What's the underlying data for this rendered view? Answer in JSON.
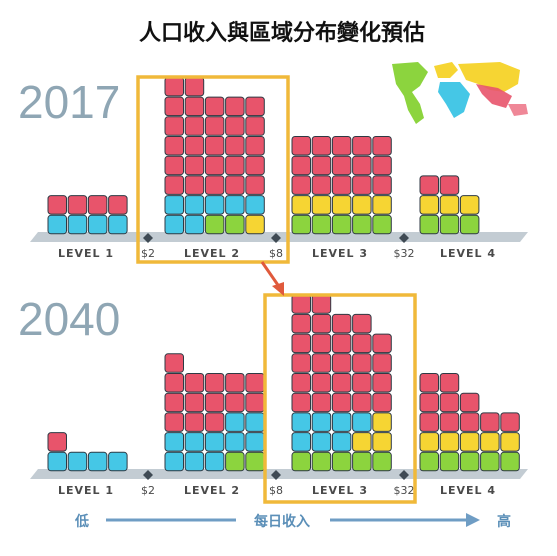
{
  "chart_data": {
    "type": "stacked-block-bar",
    "title": "人口收入與區域分布變化預估",
    "x_axis": {
      "low_label": "低",
      "label": "每日收入",
      "high_label": "高"
    },
    "levels": [
      "LEVEL 1",
      "LEVEL 2",
      "LEVEL 3",
      "LEVEL 4"
    ],
    "thresholds": [
      "$2",
      "$8",
      "$32"
    ],
    "region_colors": {
      "region_a": "#e8546b",
      "region_b": "#45c7e6",
      "region_c": "#f6d533",
      "region_d": "#8cd43e"
    },
    "panels": [
      {
        "year": "2017",
        "highlight_level": 1,
        "columns": [
          [
            {
              "r": "region_b",
              "n": 1
            },
            {
              "r": "region_a",
              "n": 1
            }
          ],
          [
            {
              "r": "region_b",
              "n": 1
            },
            {
              "r": "region_a",
              "n": 1
            }
          ],
          [
            {
              "r": "region_b",
              "n": 1
            },
            {
              "r": "region_a",
              "n": 1
            }
          ],
          [
            {
              "r": "region_b",
              "n": 1
            },
            {
              "r": "region_a",
              "n": 1
            }
          ],
          [
            {
              "r": "region_b",
              "n": 2
            },
            {
              "r": "region_a",
              "n": 6
            }
          ],
          [
            {
              "r": "region_b",
              "n": 2
            },
            {
              "r": "region_a",
              "n": 6
            }
          ],
          [
            {
              "r": "region_d",
              "n": 1
            },
            {
              "r": "region_b",
              "n": 1
            },
            {
              "r": "region_a",
              "n": 5
            }
          ],
          [
            {
              "r": "region_d",
              "n": 1
            },
            {
              "r": "region_b",
              "n": 1
            },
            {
              "r": "region_a",
              "n": 5
            }
          ],
          [
            {
              "r": "region_c",
              "n": 1
            },
            {
              "r": "region_b",
              "n": 1
            },
            {
              "r": "region_a",
              "n": 5
            }
          ],
          [
            {
              "r": "region_d",
              "n": 1
            },
            {
              "r": "region_c",
              "n": 1
            },
            {
              "r": "region_a",
              "n": 3
            }
          ],
          [
            {
              "r": "region_d",
              "n": 1
            },
            {
              "r": "region_c",
              "n": 1
            },
            {
              "r": "region_a",
              "n": 3
            }
          ],
          [
            {
              "r": "region_d",
              "n": 1
            },
            {
              "r": "region_c",
              "n": 1
            },
            {
              "r": "region_a",
              "n": 3
            }
          ],
          [
            {
              "r": "region_d",
              "n": 1
            },
            {
              "r": "region_c",
              "n": 1
            },
            {
              "r": "region_a",
              "n": 3
            }
          ],
          [
            {
              "r": "region_d",
              "n": 1
            },
            {
              "r": "region_c",
              "n": 1
            },
            {
              "r": "region_a",
              "n": 3
            }
          ],
          [
            {
              "r": "region_d",
              "n": 1
            },
            {
              "r": "region_c",
              "n": 1
            },
            {
              "r": "region_a",
              "n": 1
            }
          ],
          [
            {
              "r": "region_d",
              "n": 1
            },
            {
              "r": "region_c",
              "n": 1
            },
            {
              "r": "region_a",
              "n": 1
            }
          ],
          [
            {
              "r": "region_d",
              "n": 1
            },
            {
              "r": "region_c",
              "n": 1
            }
          ]
        ]
      },
      {
        "year": "2040",
        "highlight_level": 2,
        "columns": [
          [
            {
              "r": "region_b",
              "n": 1
            },
            {
              "r": "region_a",
              "n": 1
            }
          ],
          [
            {
              "r": "region_b",
              "n": 1
            }
          ],
          [
            {
              "r": "region_b",
              "n": 1
            }
          ],
          [
            {
              "r": "region_b",
              "n": 1
            }
          ],
          [
            {
              "r": "region_b",
              "n": 2
            },
            {
              "r": "region_a",
              "n": 4
            }
          ],
          [
            {
              "r": "region_b",
              "n": 2
            },
            {
              "r": "region_a",
              "n": 3
            }
          ],
          [
            {
              "r": "region_b",
              "n": 2
            },
            {
              "r": "region_a",
              "n": 3
            }
          ],
          [
            {
              "r": "region_d",
              "n": 1
            },
            {
              "r": "region_b",
              "n": 2
            },
            {
              "r": "region_a",
              "n": 2
            }
          ],
          [
            {
              "r": "region_d",
              "n": 1
            },
            {
              "r": "region_b",
              "n": 2
            },
            {
              "r": "region_a",
              "n": 2
            }
          ],
          [
            {
              "r": "region_d",
              "n": 1
            },
            {
              "r": "region_b",
              "n": 2
            },
            {
              "r": "region_a",
              "n": 6
            }
          ],
          [
            {
              "r": "region_d",
              "n": 1
            },
            {
              "r": "region_b",
              "n": 2
            },
            {
              "r": "region_a",
              "n": 6
            }
          ],
          [
            {
              "r": "region_d",
              "n": 1
            },
            {
              "r": "region_b",
              "n": 2
            },
            {
              "r": "region_a",
              "n": 5
            }
          ],
          [
            {
              "r": "region_d",
              "n": 1
            },
            {
              "r": "region_c",
              "n": 1
            },
            {
              "r": "region_b",
              "n": 1
            },
            {
              "r": "region_a",
              "n": 5
            }
          ],
          [
            {
              "r": "region_d",
              "n": 1
            },
            {
              "r": "region_c",
              "n": 2
            },
            {
              "r": "region_a",
              "n": 4
            }
          ],
          [
            {
              "r": "region_d",
              "n": 1
            },
            {
              "r": "region_c",
              "n": 1
            },
            {
              "r": "region_a",
              "n": 3
            }
          ],
          [
            {
              "r": "region_d",
              "n": 1
            },
            {
              "r": "region_c",
              "n": 1
            },
            {
              "r": "region_a",
              "n": 3
            }
          ],
          [
            {
              "r": "region_d",
              "n": 1
            },
            {
              "r": "region_c",
              "n": 1
            },
            {
              "r": "region_a",
              "n": 2
            }
          ],
          [
            {
              "r": "region_d",
              "n": 1
            },
            {
              "r": "region_c",
              "n": 1
            },
            {
              "r": "region_a",
              "n": 1
            }
          ],
          [
            {
              "r": "region_d",
              "n": 1
            },
            {
              "r": "region_c",
              "n": 1
            },
            {
              "r": "region_a",
              "n": 1
            }
          ]
        ]
      }
    ]
  }
}
